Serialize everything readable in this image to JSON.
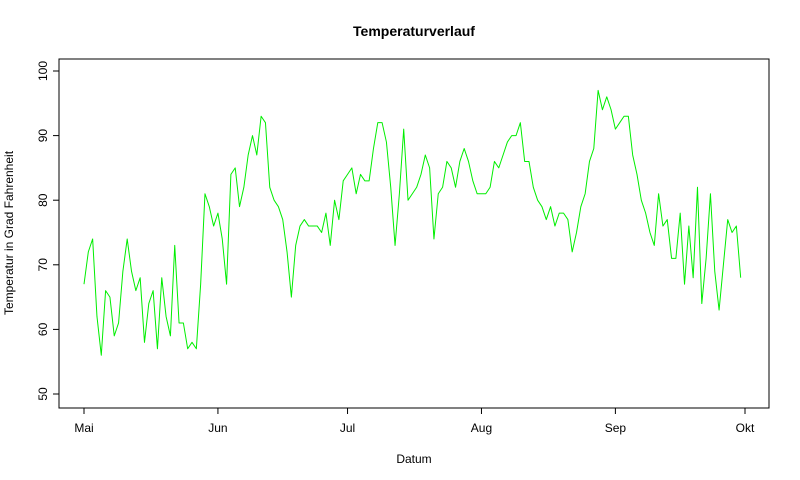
{
  "chart_data": {
    "type": "line",
    "title": "Temperaturverlauf",
    "xlabel": "Datum",
    "ylabel": "Temperatur in Grad Fahrenheit",
    "ylim": [
      50,
      100
    ],
    "yticks": [
      50,
      60,
      70,
      80,
      90,
      100
    ],
    "xlim": [
      "1973-05-01",
      "1973-10-01"
    ],
    "xticks": [
      {
        "date": "1973-05-01",
        "label": "Mai"
      },
      {
        "date": "1973-06-01",
        "label": "Jun"
      },
      {
        "date": "1973-07-01",
        "label": "Jul"
      },
      {
        "date": "1973-08-01",
        "label": "Aug"
      },
      {
        "date": "1973-09-01",
        "label": "Sep"
      },
      {
        "date": "1973-10-01",
        "label": "Okt"
      }
    ],
    "grid": false,
    "series": [
      {
        "color": "#00ee00",
        "x_start": "1973-05-01",
        "values": [
          67,
          72,
          74,
          62,
          56,
          66,
          65,
          59,
          61,
          69,
          74,
          69,
          66,
          68,
          58,
          64,
          66,
          57,
          68,
          62,
          59,
          73,
          61,
          61,
          57,
          58,
          57,
          67,
          81,
          79,
          76,
          78,
          74,
          67,
          84,
          85,
          79,
          82,
          87,
          90,
          87,
          93,
          92,
          82,
          80,
          79,
          77,
          72,
          65,
          73,
          76,
          77,
          76,
          76,
          76,
          75,
          78,
          73,
          80,
          77,
          83,
          84,
          85,
          81,
          84,
          83,
          83,
          88,
          92,
          92,
          89,
          82,
          73,
          81,
          91,
          80,
          81,
          82,
          84,
          87,
          85,
          74,
          81,
          82,
          86,
          85,
          82,
          86,
          88,
          86,
          83,
          81,
          81,
          81,
          82,
          86,
          85,
          87,
          89,
          90,
          90,
          92,
          86,
          86,
          82,
          80,
          79,
          77,
          79,
          76,
          78,
          78,
          77,
          72,
          75,
          79,
          81,
          86,
          88,
          97,
          94,
          96,
          94,
          91,
          92,
          93,
          93,
          87,
          84,
          80,
          78,
          75,
          73,
          81,
          76,
          77,
          71,
          71,
          78,
          67,
          76,
          68,
          82,
          64,
          71,
          81,
          69,
          63,
          70,
          77,
          75,
          76,
          68
        ]
      }
    ]
  }
}
